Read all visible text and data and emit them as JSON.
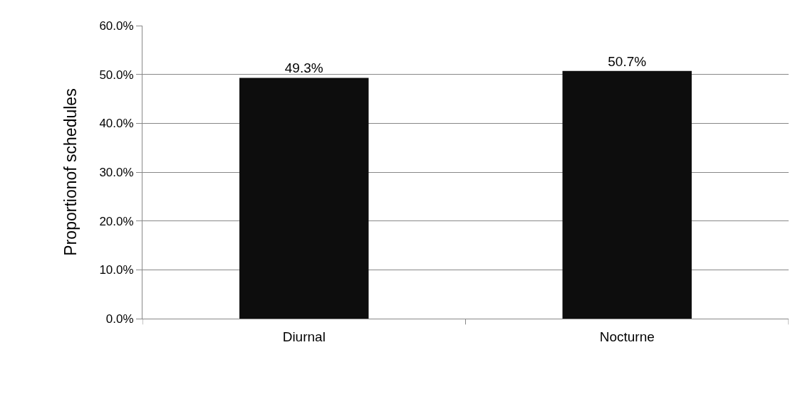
{
  "chart_data": {
    "type": "bar",
    "ylabel": "Proportionof schedules",
    "categories": [
      "Diurnal",
      "Nocturne"
    ],
    "values": [
      49.3,
      50.7
    ],
    "color": "#0d0d0d",
    "value_labels": [
      "49.3%",
      "50.7%"
    ],
    "ylim": [
      0,
      60
    ],
    "yticks": [
      {
        "value": 0,
        "label": "0.0%"
      },
      {
        "value": 10,
        "label": "10.0%"
      },
      {
        "value": 20,
        "label": "20.0%"
      },
      {
        "value": 30,
        "label": "30.0%"
      },
      {
        "value": 40,
        "label": "40.0%"
      },
      {
        "value": 50,
        "label": "50.0%"
      },
      {
        "value": 60,
        "label": "60.0%"
      }
    ],
    "grid": "y"
  }
}
